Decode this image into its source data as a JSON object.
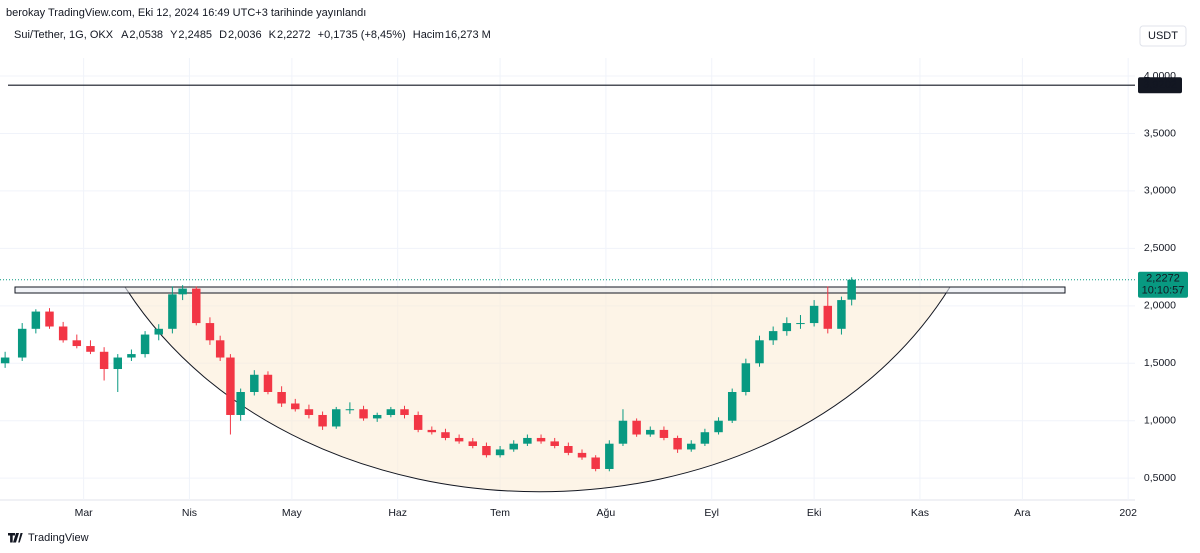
{
  "header": {
    "publisher": "berokay TradingView.com, Eki 12, 2024 16:49 UTC+3 tarihinde yayınlandı",
    "symbol": "Sui/Tether, 1G, OKX",
    "ohlc": [
      {
        "key": "A",
        "value": "2,0538"
      },
      {
        "key": "Y",
        "value": "2,2485"
      },
      {
        "key": "D",
        "value": "2,0036"
      },
      {
        "key": "K",
        "value": "2,2272"
      }
    ],
    "change": "+0,1735 (+8,45%)",
    "volume_key": "Hacim",
    "volume": "16,273 M",
    "currency": "USDT",
    "footer": "TradingView"
  },
  "chart_data": {
    "type": "candlestick",
    "x": [
      38,
      43,
      47,
      51,
      55,
      59,
      63,
      67,
      71,
      75,
      79,
      83,
      87,
      90,
      94,
      98,
      101,
      104,
      107,
      111,
      115,
      119,
      123,
      127,
      131,
      135,
      139,
      143,
      147,
      151,
      155,
      159,
      163,
      167,
      171,
      175,
      179,
      183,
      187,
      191,
      195,
      199,
      203,
      207,
      211,
      215,
      219,
      223,
      227,
      231,
      235,
      239,
      243,
      247,
      251,
      255,
      259,
      263,
      267,
      271,
      275,
      279,
      283,
      286
    ],
    "open": [
      1.5,
      1.55,
      1.8,
      1.95,
      1.82,
      1.7,
      1.65,
      1.6,
      1.45,
      1.55,
      1.58,
      1.75,
      1.8,
      2.1,
      2.15,
      1.85,
      1.7,
      1.55,
      1.05,
      1.25,
      1.4,
      1.25,
      1.15,
      1.1,
      1.05,
      0.95,
      1.1,
      1.1,
      1.02,
      1.05,
      1.1,
      1.05,
      0.92,
      0.9,
      0.85,
      0.82,
      0.78,
      0.7,
      0.75,
      0.8,
      0.85,
      0.82,
      0.78,
      0.72,
      0.68,
      0.58,
      0.8,
      1.0,
      0.88,
      0.92,
      0.85,
      0.75,
      0.8,
      0.9,
      1.0,
      1.25,
      1.5,
      1.7,
      1.78,
      1.85,
      1.85,
      2.0,
      1.8,
      2.0538
    ],
    "high": [
      1.6,
      1.85,
      1.97,
      1.98,
      1.86,
      1.75,
      1.7,
      1.64,
      1.58,
      1.62,
      1.78,
      1.84,
      2.17,
      2.18,
      2.17,
      1.9,
      1.74,
      1.58,
      1.28,
      1.44,
      1.43,
      1.3,
      1.19,
      1.14,
      1.08,
      1.12,
      1.16,
      1.13,
      1.07,
      1.12,
      1.13,
      1.08,
      0.95,
      0.93,
      0.88,
      0.85,
      0.81,
      0.78,
      0.83,
      0.88,
      0.88,
      0.85,
      0.81,
      0.75,
      0.7,
      0.83,
      1.1,
      1.02,
      0.95,
      0.95,
      0.87,
      0.83,
      0.93,
      1.03,
      1.28,
      1.54,
      1.74,
      1.82,
      1.9,
      1.92,
      2.05,
      2.17,
      2.08,
      2.2485
    ],
    "low": [
      1.46,
      1.52,
      1.76,
      1.8,
      1.68,
      1.63,
      1.58,
      1.35,
      1.25,
      1.52,
      1.55,
      1.7,
      1.76,
      2.05,
      1.83,
      1.66,
      1.52,
      0.88,
      1.0,
      1.22,
      1.23,
      1.12,
      1.08,
      1.02,
      0.92,
      0.93,
      1.06,
      1.0,
      0.99,
      1.03,
      1.02,
      0.9,
      0.88,
      0.83,
      0.8,
      0.76,
      0.68,
      0.68,
      0.73,
      0.78,
      0.8,
      0.76,
      0.7,
      0.66,
      0.56,
      0.56,
      0.78,
      0.86,
      0.86,
      0.83,
      0.72,
      0.73,
      0.78,
      0.88,
      0.98,
      1.22,
      1.47,
      1.66,
      1.74,
      1.8,
      1.82,
      1.76,
      1.75,
      2.0036
    ],
    "close": [
      1.55,
      1.8,
      1.95,
      1.82,
      1.7,
      1.65,
      1.6,
      1.45,
      1.55,
      1.58,
      1.75,
      1.8,
      2.1,
      2.15,
      1.85,
      1.7,
      1.55,
      1.05,
      1.25,
      1.4,
      1.25,
      1.15,
      1.1,
      1.05,
      0.95,
      1.1,
      1.1,
      1.02,
      1.05,
      1.1,
      1.05,
      0.92,
      0.9,
      0.85,
      0.82,
      0.78,
      0.7,
      0.75,
      0.8,
      0.85,
      0.82,
      0.78,
      0.72,
      0.68,
      0.58,
      0.8,
      1.0,
      0.88,
      0.92,
      0.85,
      0.75,
      0.8,
      0.9,
      1.0,
      1.25,
      1.5,
      1.7,
      1.78,
      1.85,
      1.85,
      2.0,
      1.8,
      2.05,
      2.2272
    ],
    "up_color": "#089981",
    "down_color": "#f23645",
    "xlim": [
      36.5,
      369
    ],
    "xticks": [
      {
        "value": 61,
        "label": "Mar"
      },
      {
        "value": 92,
        "label": "Nis"
      },
      {
        "value": 122,
        "label": "May"
      },
      {
        "value": 153,
        "label": "Haz"
      },
      {
        "value": 183,
        "label": "Tem"
      },
      {
        "value": 214,
        "label": "Ağu"
      },
      {
        "value": 245,
        "label": "Eyl"
      },
      {
        "value": 275,
        "label": "Eki"
      },
      {
        "value": 306,
        "label": "Kas"
      },
      {
        "value": 336,
        "label": "Ara"
      },
      {
        "value": 367,
        "label": "202"
      }
    ],
    "ylim": [
      0.31,
      4.157
    ],
    "yticks": [
      {
        "value": 0.5,
        "label": "0,5000"
      },
      {
        "value": 1,
        "label": "1,0000"
      },
      {
        "value": 1.5,
        "label": "1,5000"
      },
      {
        "value": 2,
        "label": "2,0000"
      },
      {
        "value": 2.5,
        "label": "2,5000"
      },
      {
        "value": 3,
        "label": "3,0000"
      },
      {
        "value": 3.5,
        "label": "3,5000"
      },
      {
        "value": 4,
        "label": "4,0000"
      }
    ],
    "grid": true,
    "hline": {
      "value": 3.9202,
      "label": "3,9202"
    },
    "last_price": {
      "value": 2.2272,
      "label": "2,2272",
      "countdown": "10:10:57"
    }
  }
}
